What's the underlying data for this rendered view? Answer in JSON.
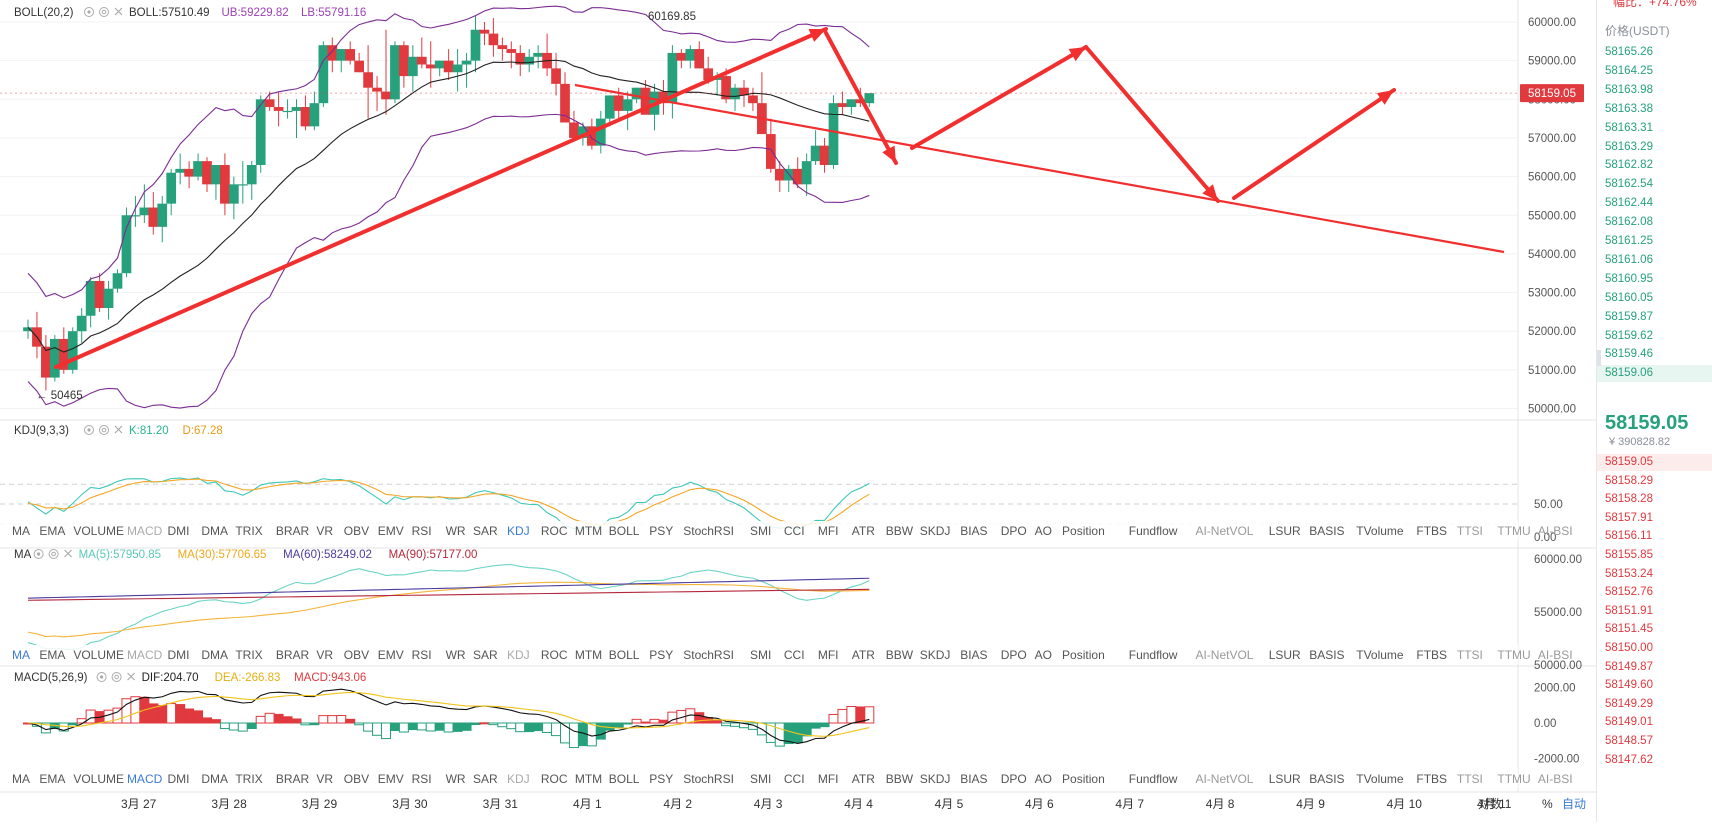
{
  "colors": {
    "up": "#26a17b",
    "down": "#e0393e",
    "boll_mid": "#222222",
    "boll_band": "#7b2c93",
    "kdj_k": "#3ec8b8",
    "kdj_d": "#f5a623",
    "ma5": "#6ad4c4",
    "ma30": "#f5b43b",
    "ma60": "#4b3ca0",
    "ma90": "#b3283c",
    "macd_dif": "#111111",
    "macd_dea": "#f0c419",
    "drawing": "#f22f2f",
    "active_tab": "#3a7bd5"
  },
  "panels": {
    "main": {
      "indicator": "BOLL(20,2)",
      "values": [
        {
          "text": "BOLL:57510.49",
          "color": "#333333"
        },
        {
          "text": "UB:59229.82",
          "color": "#9b3fb5"
        },
        {
          "text": "LB:55791.16",
          "color": "#9b3fb5"
        }
      ],
      "high_label": "60169.85",
      "low_label": "← 50465",
      "price_tag": "58159.05",
      "ticks": [
        "60000.00",
        "59000.00",
        "58000.00",
        "57000.00",
        "56000.00",
        "55000.00",
        "54000.00",
        "53000.00",
        "52000.00",
        "51000.00",
        "50000.00"
      ]
    },
    "kdj": {
      "indicator": "KDJ(9,3,3)",
      "values": [
        {
          "text": "K:81.20",
          "color": "#2bb58d"
        },
        {
          "text": "D:67.28",
          "color": "#e69b14"
        }
      ],
      "ticks": [
        "50.00",
        "0.00"
      ]
    },
    "ma": {
      "indicator": "MA",
      "values": [
        {
          "text": "MA(5):57950.85",
          "color": "#5ac8b8"
        },
        {
          "text": "MA(30):57706.65",
          "color": "#f0a81c"
        },
        {
          "text": "MA(60):58249.02",
          "color": "#4b3ca0"
        },
        {
          "text": "MA(90):57177.00",
          "color": "#b3283c"
        }
      ],
      "ticks": [
        "60000.00",
        "55000.00",
        "50000.00"
      ]
    },
    "macd": {
      "indicator": "MACD(5,26,9)",
      "values": [
        {
          "text": "DIF:204.70",
          "color": "#222222"
        },
        {
          "text": "DEA:-266.83",
          "color": "#e6b012"
        },
        {
          "text": "MACD:943.06",
          "color": "#e0393e"
        }
      ],
      "ticks": [
        "2000.00",
        "0.00",
        "-2000.00"
      ]
    }
  },
  "indicator_tabs": [
    "MA",
    "EMA",
    "VOLUME",
    "MACD",
    "DMI",
    "DMA",
    "TRIX",
    "BRAR",
    "VR",
    "OBV",
    "EMV",
    "RSI",
    "WR",
    "SAR",
    "KDJ",
    "ROC",
    "MTM",
    "BOLL",
    "PSY",
    "StochRSI",
    "SMI",
    "CCI",
    "MFI",
    "ATR",
    "BBW",
    "SKDJ",
    "BIAS",
    "DPO",
    "AO",
    "Position",
    "Fundflow",
    "AI-NetVOL",
    "LSUR",
    "BASIS",
    "TVolume",
    "FTBS",
    "TTSI",
    "TTMU",
    "AI-BSI"
  ],
  "tab_bars": [
    {
      "active": [
        "KDJ"
      ],
      "faded": [
        "MACD"
      ]
    },
    {
      "active": [
        "MA"
      ],
      "faded": [
        "MACD",
        "KDJ"
      ]
    },
    {
      "active": [
        "MACD"
      ],
      "faded": [
        "KDJ"
      ]
    }
  ],
  "x_axis": {
    "labels": [
      "3月 27",
      "3月 28",
      "3月 29",
      "3月 30",
      "3月 31",
      "4月 1",
      "4月 2",
      "4月 3",
      "4月 4",
      "4月 5",
      "4月 6",
      "4月 7",
      "4月 8",
      "4月 9",
      "4月 10",
      "4月 11"
    ],
    "controls": [
      "对数",
      "%",
      "自动"
    ]
  },
  "order_book": {
    "change_label": "幅比：+74.76%",
    "header": "价格(USDT)",
    "bids": [
      "58165.26",
      "58164.25",
      "58163.98",
      "58163.38",
      "58163.31",
      "58163.29",
      "58162.82",
      "58162.54",
      "58162.44",
      "58162.08",
      "58161.25",
      "58161.06",
      "58160.95",
      "58160.05",
      "58159.87",
      "58159.62",
      "58159.46",
      "58159.06"
    ],
    "last_price": "58159.05",
    "last_price_cny": "¥ 390828.82",
    "asks": [
      "58159.05",
      "58158.29",
      "58158.28",
      "58157.91",
      "58156.11",
      "58155.85",
      "58153.24",
      "58152.76",
      "58151.91",
      "58151.45",
      "58150.00",
      "58149.87",
      "58149.60",
      "58149.29",
      "58149.01",
      "58148.57",
      "58147.62"
    ]
  },
  "chart_data": {
    "type": "candlestick",
    "x_categories": [
      "3月 27",
      "3月 28",
      "3月 29",
      "3月 30",
      "3月 31",
      "4月 1",
      "4月 2",
      "4月 3",
      "4月 4",
      "4月 5",
      "4月 6",
      "4月 7",
      "4月 8",
      "4月 9",
      "4月 10",
      "4月 11"
    ],
    "price_range": [
      49600,
      60500
    ],
    "candles_ohlc": [
      [
        52000,
        52300,
        51800,
        52100
      ],
      [
        52100,
        52500,
        51300,
        51600
      ],
      [
        51600,
        51900,
        50465,
        50800
      ],
      [
        50800,
        51900,
        50700,
        51800
      ],
      [
        51800,
        52100,
        50900,
        51000
      ],
      [
        51000,
        52100,
        50900,
        52000
      ],
      [
        52000,
        52600,
        51700,
        52400
      ],
      [
        52400,
        53400,
        52100,
        53300
      ],
      [
        53300,
        53500,
        52500,
        52600
      ],
      [
        52600,
        53300,
        52300,
        53100
      ],
      [
        53100,
        53600,
        53000,
        53500
      ],
      [
        53500,
        55200,
        53400,
        55000
      ],
      [
        55000,
        55500,
        54700,
        55000
      ],
      [
        55000,
        55800,
        54800,
        55200
      ],
      [
        55200,
        55600,
        54500,
        54700
      ],
      [
        54700,
        55500,
        54300,
        55300
      ],
      [
        55300,
        56200,
        55000,
        56100
      ],
      [
        56100,
        56600,
        55800,
        56200
      ],
      [
        56200,
        56400,
        55700,
        56000
      ],
      [
        56000,
        56600,
        55900,
        56400
      ],
      [
        56400,
        56500,
        55600,
        55800
      ],
      [
        55800,
        56300,
        55400,
        56300
      ],
      [
        56300,
        56600,
        55000,
        55300
      ],
      [
        55300,
        56000,
        54900,
        55800
      ],
      [
        55800,
        56400,
        55300,
        55800
      ],
      [
        55800,
        56400,
        55400,
        56300
      ],
      [
        56300,
        58100,
        56100,
        58000
      ],
      [
        58000,
        58200,
        57700,
        57800
      ],
      [
        57800,
        58200,
        57300,
        57700
      ],
      [
        57700,
        58000,
        57500,
        57700
      ],
      [
        57700,
        58000,
        57000,
        57800
      ],
      [
        57800,
        58100,
        57200,
        57300
      ],
      [
        57300,
        58200,
        57200,
        57900
      ],
      [
        57900,
        59500,
        57800,
        59400
      ],
      [
        59400,
        59600,
        58700,
        59000
      ],
      [
        59000,
        59300,
        58700,
        59300
      ],
      [
        59300,
        59500,
        58900,
        59000
      ],
      [
        59000,
        59200,
        58700,
        58700
      ],
      [
        58700,
        59400,
        57500,
        58300
      ],
      [
        58300,
        58600,
        57700,
        58200
      ],
      [
        58200,
        59800,
        57600,
        58000
      ],
      [
        58000,
        59500,
        57900,
        59400
      ],
      [
        59400,
        59500,
        58300,
        58600
      ],
      [
        58600,
        59400,
        58200,
        59100
      ],
      [
        59100,
        59600,
        58800,
        58900
      ],
      [
        58900,
        59500,
        58300,
        58800
      ],
      [
        58800,
        59000,
        58600,
        59000
      ],
      [
        59000,
        59300,
        58500,
        58700
      ],
      [
        58700,
        59300,
        58200,
        58900
      ],
      [
        58900,
        59200,
        58300,
        59000
      ],
      [
        59000,
        60169.85,
        58700,
        59800
      ],
      [
        59800,
        60000,
        59400,
        59700
      ],
      [
        59700,
        60100,
        59100,
        59400
      ],
      [
        59400,
        59600,
        59000,
        59300
      ],
      [
        59300,
        59500,
        58800,
        59200
      ],
      [
        59200,
        59400,
        58600,
        58900
      ],
      [
        58900,
        59300,
        58700,
        59100
      ],
      [
        59100,
        59400,
        58800,
        59200
      ],
      [
        59200,
        59700,
        58600,
        58800
      ],
      [
        58800,
        59200,
        58100,
        58400
      ],
      [
        58400,
        58700,
        57600,
        57400
      ],
      [
        57400,
        57700,
        56900,
        57000
      ],
      [
        57000,
        57400,
        56800,
        57300
      ],
      [
        57300,
        57500,
        56700,
        56800
      ],
      [
        56800,
        57700,
        56600,
        57500
      ],
      [
        57500,
        58100,
        57300,
        58100
      ],
      [
        58100,
        58300,
        57500,
        57700
      ],
      [
        57700,
        58200,
        57200,
        58000
      ],
      [
        58000,
        58300,
        57900,
        58300
      ],
      [
        58300,
        58500,
        57800,
        57600
      ],
      [
        57600,
        58400,
        57200,
        58200
      ],
      [
        58200,
        58500,
        57600,
        57900
      ],
      [
        57900,
        59400,
        57500,
        59200
      ],
      [
        59200,
        59300,
        58800,
        59000
      ],
      [
        59000,
        59400,
        58800,
        59300
      ],
      [
        59300,
        59500,
        58800,
        58800
      ],
      [
        58800,
        59100,
        58400,
        58500
      ],
      [
        58500,
        58700,
        58100,
        58600
      ],
      [
        58600,
        58800,
        57900,
        58000
      ],
      [
        58000,
        58400,
        57700,
        58300
      ],
      [
        58300,
        58500,
        57800,
        58100
      ],
      [
        58100,
        58300,
        57700,
        57900
      ],
      [
        57900,
        58700,
        57100,
        57100
      ],
      [
        57100,
        57500,
        56100,
        56200
      ],
      [
        56200,
        56400,
        55600,
        55900
      ],
      [
        55900,
        56300,
        55600,
        56200
      ],
      [
        56200,
        56500,
        55700,
        55800
      ],
      [
        55800,
        56600,
        55500,
        56400
      ],
      [
        56400,
        57200,
        56300,
        56800
      ],
      [
        56800,
        57000,
        56100,
        56300
      ],
      [
        56300,
        58100,
        56200,
        57900
      ],
      [
        57900,
        58200,
        57600,
        57800
      ],
      [
        57800,
        58000,
        57600,
        58000
      ],
      [
        58000,
        58300,
        57800,
        57900
      ],
      [
        57900,
        58100,
        57800,
        58159.05
      ]
    ],
    "x_start_category": "3月 26",
    "high_marker": 60169.85,
    "low_marker": 50465
  }
}
